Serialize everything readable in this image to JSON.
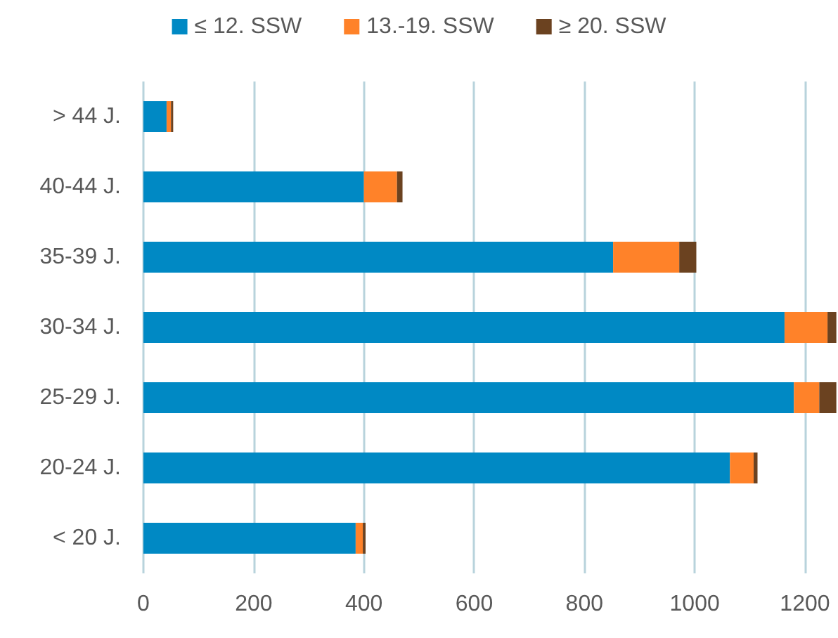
{
  "chart_data": {
    "type": "bar",
    "orientation": "horizontal",
    "stacked": true,
    "categories": [
      "> 44 J.",
      "40-44 J.",
      "35-39 J.",
      "30-34 J.",
      "25-29 J.",
      "20-24 J.",
      "< 20 J."
    ],
    "series": [
      {
        "name": "≤ 12. SSW",
        "color": "#0089c4",
        "values": [
          42,
          400,
          852,
          1163,
          1180,
          1064,
          385
        ]
      },
      {
        "name": "13.-19. SSW",
        "color": "#ff8229",
        "values": [
          8,
          60,
          120,
          78,
          46,
          43,
          13
        ]
      },
      {
        "name": "≥ 20. SSW",
        "color": "#6b4220",
        "values": [
          4,
          10,
          31,
          16,
          31,
          7,
          5
        ]
      }
    ],
    "xlim": [
      0,
      1260
    ],
    "xticks": [
      0,
      200,
      400,
      600,
      800,
      1000,
      1200
    ],
    "grid": "x",
    "legend": "top"
  }
}
